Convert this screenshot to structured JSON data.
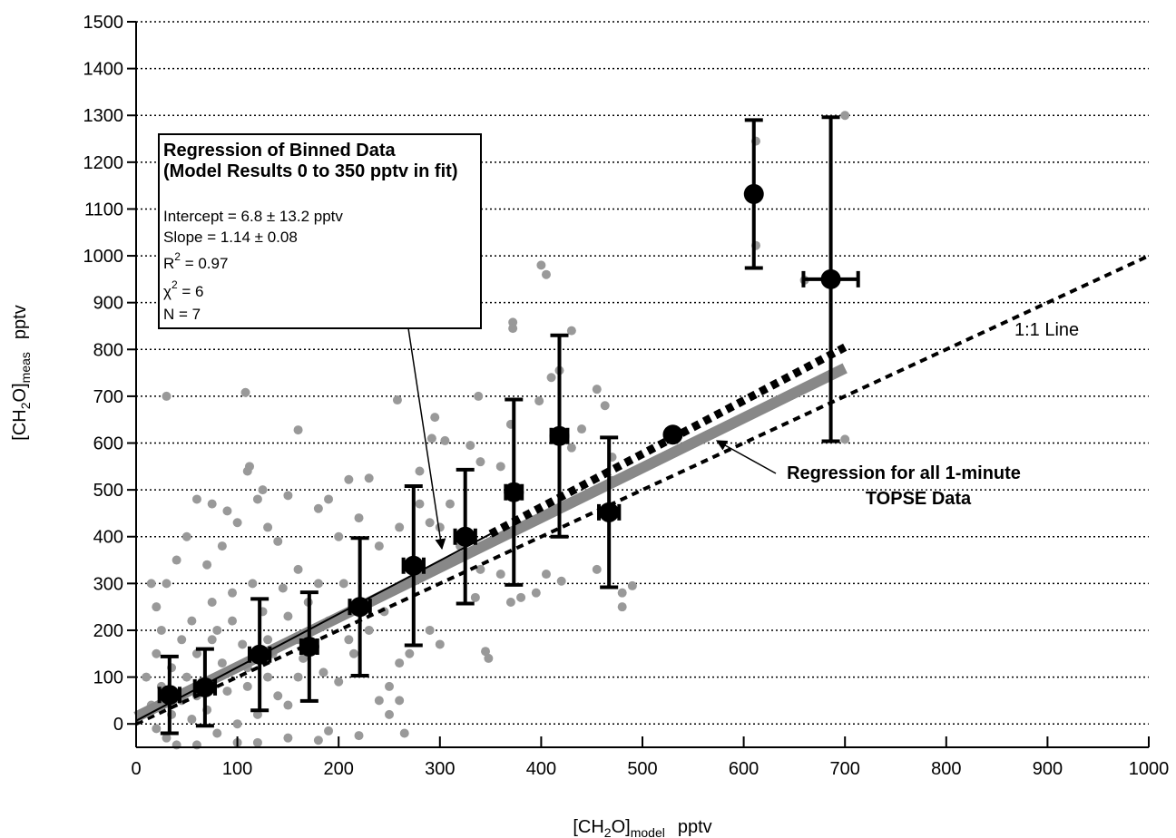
{
  "chart_data": {
    "type": "scatter",
    "x_label": [
      "[CH",
      "2",
      "O]",
      "model",
      "pptv"
    ],
    "y_label": [
      "[CH",
      "2",
      "O]",
      "meas",
      "pptv"
    ],
    "xlim": [
      0,
      1000
    ],
    "ylim": [
      -50,
      1500
    ],
    "xticks": [
      0,
      100,
      200,
      300,
      400,
      500,
      600,
      700,
      800,
      900,
      1000
    ],
    "yticks": [
      0,
      100,
      200,
      300,
      400,
      500,
      600,
      700,
      800,
      900,
      1000,
      1100,
      1200,
      1300,
      1400,
      1500
    ],
    "grid": true,
    "series": [
      {
        "type": "scatter",
        "color": "#999999",
        "x": [
          30,
          108,
          160,
          400,
          405,
          612,
          612,
          700,
          700,
          660,
          372,
          372,
          430,
          418,
          410,
          455,
          463,
          398,
          338,
          258,
          370,
          295,
          292,
          305,
          330,
          340,
          360,
          280,
          230,
          210,
          190,
          180,
          150,
          120,
          125,
          112,
          110,
          60,
          75,
          90,
          100,
          50,
          130,
          140,
          160,
          200,
          240,
          220,
          260,
          300,
          310,
          280,
          290,
          320,
          340,
          360,
          370,
          380,
          395,
          405,
          420,
          430,
          440,
          455,
          470,
          470,
          480,
          480,
          490,
          345,
          348,
          335,
          300,
          290,
          270,
          260,
          250,
          260,
          240,
          250,
          265,
          220,
          190,
          180,
          150,
          120,
          100,
          60,
          40,
          30,
          20,
          15,
          10,
          20,
          25,
          20,
          30,
          15,
          40,
          70,
          85,
          95,
          80,
          60,
          50,
          45,
          70,
          90,
          110,
          130,
          150,
          170,
          190,
          210,
          160,
          140,
          120,
          100,
          80,
          55,
          35,
          65,
          85,
          105,
          125,
          145,
          55,
          75,
          115,
          135,
          165,
          185,
          200,
          215,
          230,
          245,
          205,
          180,
          160,
          45,
          35,
          25,
          60,
          75,
          95,
          110,
          130,
          150
        ],
        "y": [
          700,
          708,
          628,
          980,
          960,
          1245,
          1022,
          1300,
          608,
          948,
          858,
          845,
          840,
          755,
          740,
          715,
          680,
          690,
          700,
          692,
          640,
          655,
          610,
          605,
          595,
          560,
          550,
          540,
          525,
          522,
          480,
          460,
          488,
          480,
          500,
          550,
          540,
          480,
          470,
          455,
          430,
          400,
          420,
          390,
          330,
          400,
          380,
          440,
          420,
          420,
          470,
          470,
          430,
          380,
          330,
          320,
          260,
          270,
          280,
          320,
          305,
          590,
          630,
          330,
          570,
          520,
          280,
          250,
          295,
          155,
          140,
          270,
          170,
          200,
          150,
          130,
          80,
          50,
          50,
          20,
          -20,
          -25,
          -15,
          -35,
          -30,
          -40,
          -40,
          -45,
          -45,
          -30,
          -10,
          40,
          100,
          150,
          200,
          250,
          300,
          300,
          350,
          340,
          380,
          280,
          200,
          150,
          100,
          50,
          30,
          70,
          120,
          180,
          230,
          260,
          220,
          180,
          100,
          60,
          20,
          0,
          -20,
          10,
          20,
          90,
          130,
          170,
          240,
          290,
          220,
          260,
          300,
          150,
          140,
          110,
          90,
          150,
          200,
          240,
          300,
          300,
          180,
          180,
          120,
          80,
          60,
          180,
          220,
          80,
          100,
          40
        ]
      },
      {
        "type": "errorbar",
        "color": "#000000",
        "x": [
          33,
          68,
          122,
          171,
          221,
          274,
          325,
          373,
          418,
          467,
          530,
          610,
          686
        ],
        "y": [
          62,
          78,
          148,
          165,
          250,
          338,
          400,
          495,
          615,
          452,
          618,
          1132,
          950
        ],
        "xerr": [
          10,
          10,
          10,
          8,
          10,
          10,
          10,
          8,
          8,
          10,
          null,
          null,
          27
        ],
        "yerr": [
          82,
          82,
          119,
          116,
          147,
          170,
          143,
          198,
          215,
          160,
          null,
          158,
          346
        ]
      }
    ],
    "lines": [
      {
        "x": [
          0,
          1000
        ],
        "y": [
          0,
          1000
        ],
        "color": "#000000",
        "dash": "8 6",
        "width": 4
      },
      {
        "x": [
          0,
          700
        ],
        "y": [
          15,
          760
        ],
        "color": "#888888",
        "dash": null,
        "width": 12
      },
      {
        "x": [
          0,
          350
        ],
        "y": [
          6.8,
          405.8
        ],
        "color": "#000000",
        "dash": null,
        "width": 2
      },
      {
        "x": [
          350,
          700
        ],
        "y": [
          405.8,
          804.8
        ],
        "color": "#000000",
        "dash": "8 6",
        "width": 9
      }
    ],
    "box": {
      "title": [
        "Regression of Binned Data",
        "(Model Results 0 to 350 pptv in fit)"
      ],
      "lines": [
        [
          "Intercept = 6.8 ± 13.2 pptv"
        ],
        [
          "Slope = 1.14 ± 0.08"
        ],
        [
          "R",
          "2",
          " = 0.97"
        ],
        [
          "χ",
          "2",
          " = 6"
        ],
        [
          "N = 7"
        ]
      ]
    },
    "one_to_one_label": "1:1 Line",
    "regression_label": [
      "Regression for all 1-minute",
      "TOPSE Data"
    ]
  }
}
